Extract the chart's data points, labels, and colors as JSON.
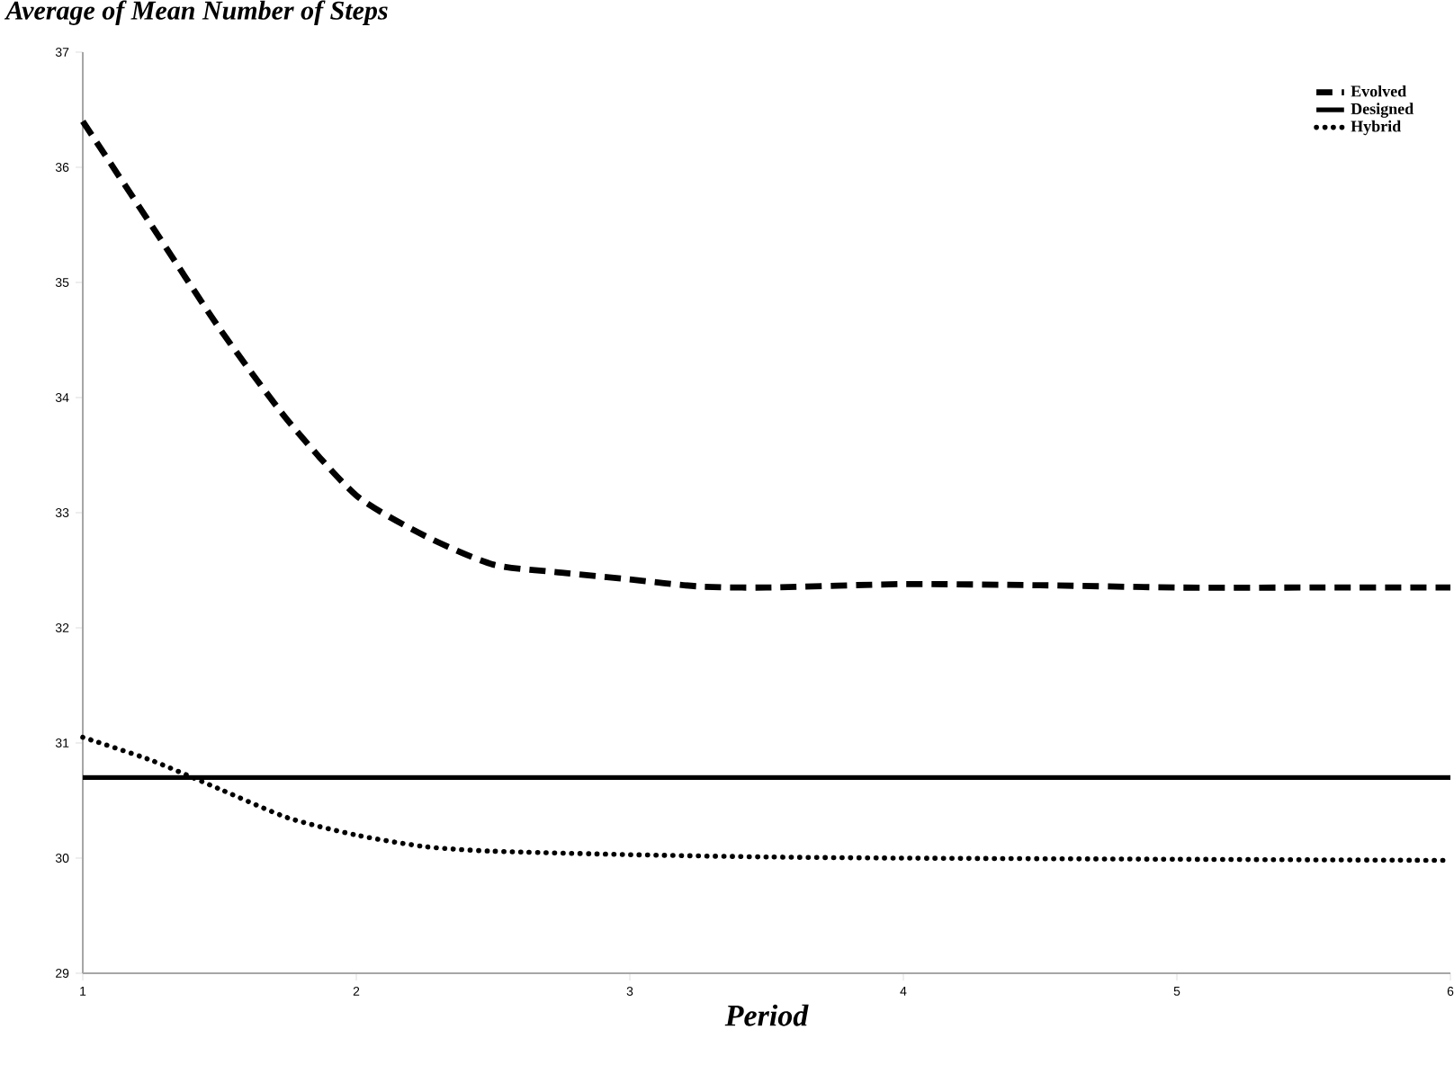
{
  "chart_data": {
    "type": "line",
    "title": "Average of Mean Number of Steps",
    "xlabel": "Period",
    "xlim": [
      1,
      6
    ],
    "xticks": [
      1,
      2,
      3,
      4,
      5,
      6
    ],
    "ylim": [
      29,
      37
    ],
    "yticks": [
      29,
      30,
      31,
      32,
      33,
      34,
      35,
      36,
      37
    ],
    "grid": false,
    "legend": "top right",
    "marker": "none",
    "series": [
      {
        "name": "Evolved",
        "color": "#000000",
        "line_style": "dashed",
        "x": [
          1,
          1.25,
          1.5,
          1.75,
          2,
          2.25,
          2.5,
          2.75,
          3,
          3.25,
          3.5,
          4,
          4.5,
          5,
          5.5,
          6
        ],
        "values": [
          36.4,
          35.5,
          34.6,
          33.8,
          33.15,
          32.8,
          32.55,
          32.48,
          32.42,
          32.36,
          32.35,
          32.38,
          32.37,
          32.35,
          32.35,
          32.35
        ]
      },
      {
        "name": "Designed",
        "color": "#000000",
        "line_style": "solid",
        "x": [
          1,
          6
        ],
        "values": [
          30.7,
          30.7
        ]
      },
      {
        "name": "Hybrid",
        "color": "#000000",
        "line_style": "dotted",
        "x": [
          1,
          1.25,
          1.5,
          1.75,
          2,
          2.25,
          2.5,
          3,
          3.5,
          4,
          5,
          6
        ],
        "values": [
          31.05,
          30.85,
          30.6,
          30.35,
          30.2,
          30.1,
          30.06,
          30.03,
          30.01,
          30.0,
          29.99,
          29.98
        ]
      }
    ]
  }
}
